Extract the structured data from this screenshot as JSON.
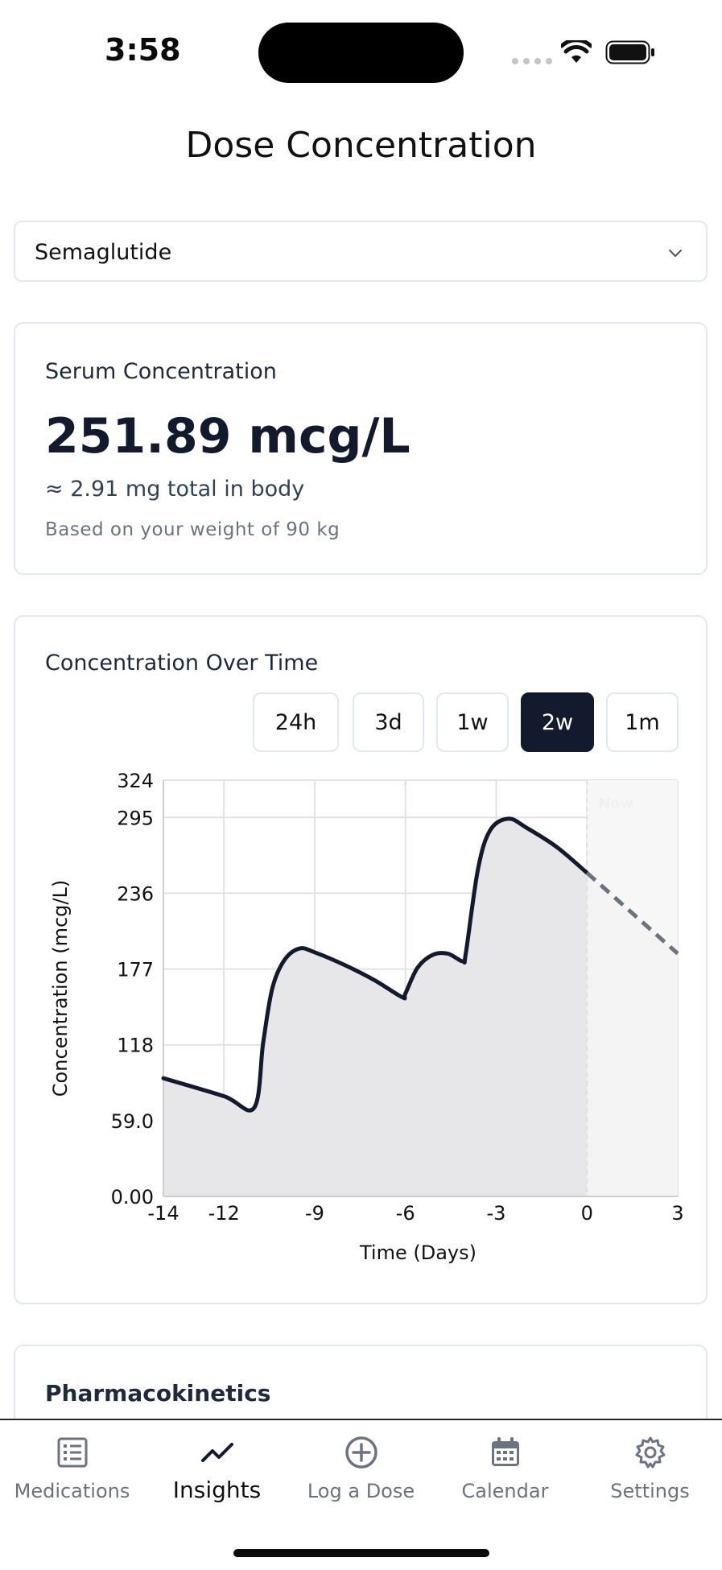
{
  "status_bar": {
    "time": "3:58"
  },
  "page": {
    "title": "Dose Concentration"
  },
  "medication_select": {
    "value": "Semaglutide"
  },
  "serum": {
    "heading": "Serum Concentration",
    "value": "251.89 mcg/L",
    "total": "≈ 2.91 mg total in body",
    "note": "Based on your weight of 90 kg"
  },
  "chart_card": {
    "heading": "Concentration Over Time",
    "ranges": [
      "24h",
      "3d",
      "1w",
      "2w",
      "1m"
    ],
    "active_range": "2w"
  },
  "chart_data": {
    "type": "line",
    "xlabel": "Time (Days)",
    "ylabel": "Concentration (mcg/L)",
    "xlim": [
      -14,
      3
    ],
    "ylim": [
      0,
      324
    ],
    "x_ticks": [
      -14,
      -12,
      -9,
      -6,
      -3,
      0,
      3
    ],
    "x_tick_labels": [
      "-14",
      "-12",
      "-9",
      "-6",
      "-3",
      "0",
      "3"
    ],
    "y_ticks": [
      0,
      59,
      118,
      177,
      236,
      295,
      324
    ],
    "y_tick_labels": [
      "0.00",
      "59.0",
      "118",
      "177",
      "236",
      "295",
      "324"
    ],
    "now_label": "Now",
    "grid": true,
    "series": [
      {
        "values": [
          [
            -14,
            92
          ],
          [
            -12,
            78
          ],
          [
            -11,
            69
          ],
          [
            -10.7,
            120
          ],
          [
            -10.4,
            162
          ],
          [
            -10,
            184
          ],
          [
            -9.5,
            193
          ],
          [
            -9,
            190
          ],
          [
            -8,
            180
          ],
          [
            -7,
            168
          ],
          [
            -6.1,
            155
          ],
          [
            -6,
            158
          ],
          [
            -5.6,
            178
          ],
          [
            -5.1,
            188
          ],
          [
            -4.6,
            189
          ],
          [
            -4.1,
            183
          ],
          [
            -4,
            190
          ],
          [
            -3.6,
            255
          ],
          [
            -3.2,
            285
          ],
          [
            -2.6,
            294
          ],
          [
            -2,
            287
          ],
          [
            -1,
            272
          ],
          [
            0,
            251.89
          ]
        ]
      },
      {
        "values": [
          [
            0,
            251.89
          ],
          [
            3,
            189
          ]
        ],
        "style": "dashed projection"
      }
    ]
  },
  "section3": {
    "heading": "Pharmacokinetics"
  },
  "tabs": [
    {
      "label": "Medications",
      "icon": "list-icon"
    },
    {
      "label": "Insights",
      "icon": "trend-icon"
    },
    {
      "label": "Log a Dose",
      "icon": "plus-circle-icon"
    },
    {
      "label": "Calendar",
      "icon": "calendar-icon"
    },
    {
      "label": "Settings",
      "icon": "gear-icon"
    }
  ],
  "colors": {
    "accent": "#131a2e",
    "line": "#131a2e",
    "projection": "#6b7280"
  }
}
